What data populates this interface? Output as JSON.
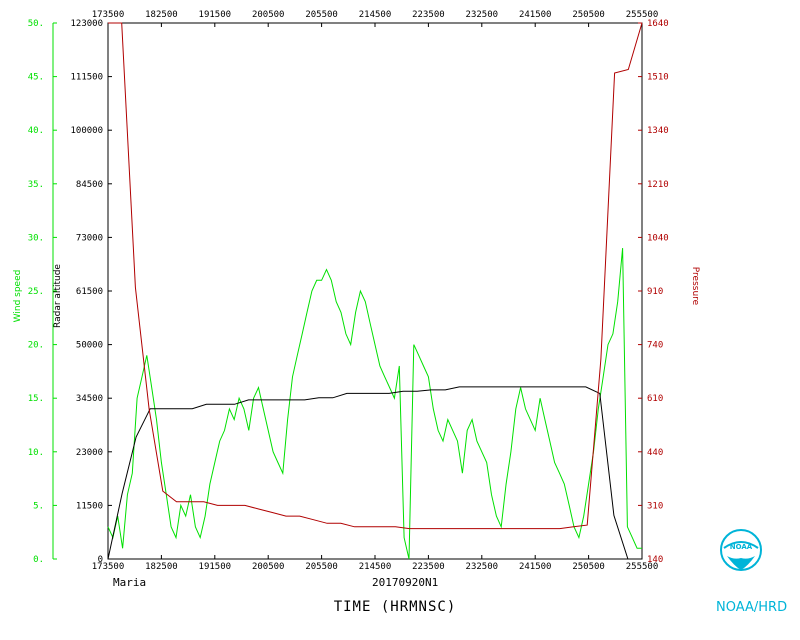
{
  "colors": {
    "wind": "#00e000",
    "altitude": "#000000",
    "pressure": "#b00000",
    "noaa": "#00b4d8",
    "frame": "#000000"
  },
  "labels": {
    "xlabel": "TIME (HRMNSC)",
    "storm": "Maria",
    "flight": "20170920N1",
    "wind_axis": "Wind speed",
    "alt_axis": "Radar altitude",
    "pres_axis": "Pressure",
    "noaa": "NOAA/HRD"
  },
  "chart_data": {
    "type": "line",
    "x_ticks": [
      "173500",
      "182500",
      "191500",
      "200500",
      "205500",
      "214500",
      "223500",
      "232500",
      "241500",
      "250500",
      "255500"
    ],
    "wind_ticks": [
      "50.",
      "45.",
      "40.",
      "35.",
      "30.",
      "25.",
      "20.",
      "15.",
      "10.",
      "5.",
      "0."
    ],
    "alt_ticks": [
      "123000",
      "111500",
      "100000",
      "84500",
      "73000",
      "61500",
      "50000",
      "34500",
      "23000",
      "11500",
      "0"
    ],
    "pres_ticks": [
      "1640",
      "1510",
      "1340",
      "1210",
      "1040",
      "910",
      "740",
      "610",
      "440",
      "310",
      "140"
    ],
    "wind_range": [
      0,
      50
    ],
    "alt_range": [
      0,
      123000
    ],
    "pres_range": [
      140,
      1640
    ],
    "series": [
      {
        "name": "Wind speed",
        "axis": "wind",
        "values": [
          3,
          2,
          4,
          1,
          6,
          8,
          15,
          17,
          19,
          16,
          13,
          9,
          6,
          3,
          2,
          5,
          4,
          6,
          3,
          2,
          4,
          7,
          9,
          11,
          12,
          14,
          13,
          15,
          14,
          12,
          15,
          16,
          14,
          12,
          10,
          9,
          8,
          13,
          17,
          19,
          21,
          23,
          25,
          26,
          26,
          27,
          26,
          24,
          23,
          21,
          20,
          23,
          25,
          24,
          22,
          20,
          18,
          17,
          16,
          15,
          18,
          2,
          0,
          20,
          19,
          18,
          17,
          14,
          12,
          11,
          13,
          12,
          11,
          8,
          12,
          13,
          11,
          10,
          9,
          6,
          4,
          3,
          7,
          10,
          14,
          16,
          14,
          13,
          12,
          15,
          13,
          11,
          9,
          8,
          7,
          5,
          3,
          2,
          4,
          7,
          10,
          14,
          17,
          20,
          21,
          24,
          29,
          3,
          2,
          1,
          1
        ]
      },
      {
        "name": "Radar altitude",
        "axis": "alt",
        "values": [
          0,
          15000,
          28000,
          34500,
          34500,
          34500,
          34500,
          35500,
          35500,
          35500,
          36500,
          36500,
          36500,
          36500,
          36500,
          37000,
          37000,
          38000,
          38000,
          38000,
          38000,
          38500,
          38500,
          38800,
          38800,
          39500,
          39500,
          39500,
          39500,
          39500,
          39500,
          39500,
          39500,
          39500,
          39500,
          38000,
          10000,
          0,
          0
        ]
      },
      {
        "name": "Pressure",
        "axis": "pres",
        "values": [
          1640,
          1640,
          900,
          560,
          330,
          300,
          300,
          300,
          290,
          290,
          290,
          280,
          270,
          260,
          260,
          250,
          240,
          240,
          230,
          230,
          230,
          230,
          225,
          225,
          225,
          225,
          225,
          225,
          225,
          225,
          225,
          225,
          225,
          225,
          230,
          235,
          700,
          1500,
          1510,
          1640
        ]
      }
    ]
  }
}
